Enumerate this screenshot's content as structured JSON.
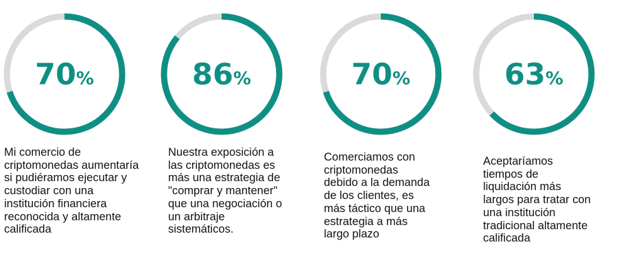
{
  "colors": {
    "accent": "#0f8f84",
    "track": "#dadada",
    "text": "#111111"
  },
  "chart_data": [
    {
      "type": "pie",
      "value": 70,
      "unit": "%",
      "caption": "Mi comercio de\ncriptomonedas aumentaría\nsi pudiéramos ejecutar y\ncustodiar con una\ninstitución financiera\nreconocida y altamente\ncalificada"
    },
    {
      "type": "pie",
      "value": 86,
      "unit": "%",
      "caption": "Nuestra exposición a\nlas criptomonedas es\nmás una estrategia de\n\"comprar y mantener\"\nque una negociación o\nun arbitraje\nsistemáticos."
    },
    {
      "type": "pie",
      "value": 70,
      "unit": "%",
      "caption": "Comerciamos con\ncriptomonedas\ndebido a la demanda\nde los clientes, es\nmás táctico que una\nestrategia a más\nlargo plazo"
    },
    {
      "type": "pie",
      "value": 63,
      "unit": "%",
      "caption": "Aceptaríamos\ntiempos de\nliquidación más\nlargos para tratar con\nuna institución\ntradicional altamente\ncalificada"
    }
  ]
}
